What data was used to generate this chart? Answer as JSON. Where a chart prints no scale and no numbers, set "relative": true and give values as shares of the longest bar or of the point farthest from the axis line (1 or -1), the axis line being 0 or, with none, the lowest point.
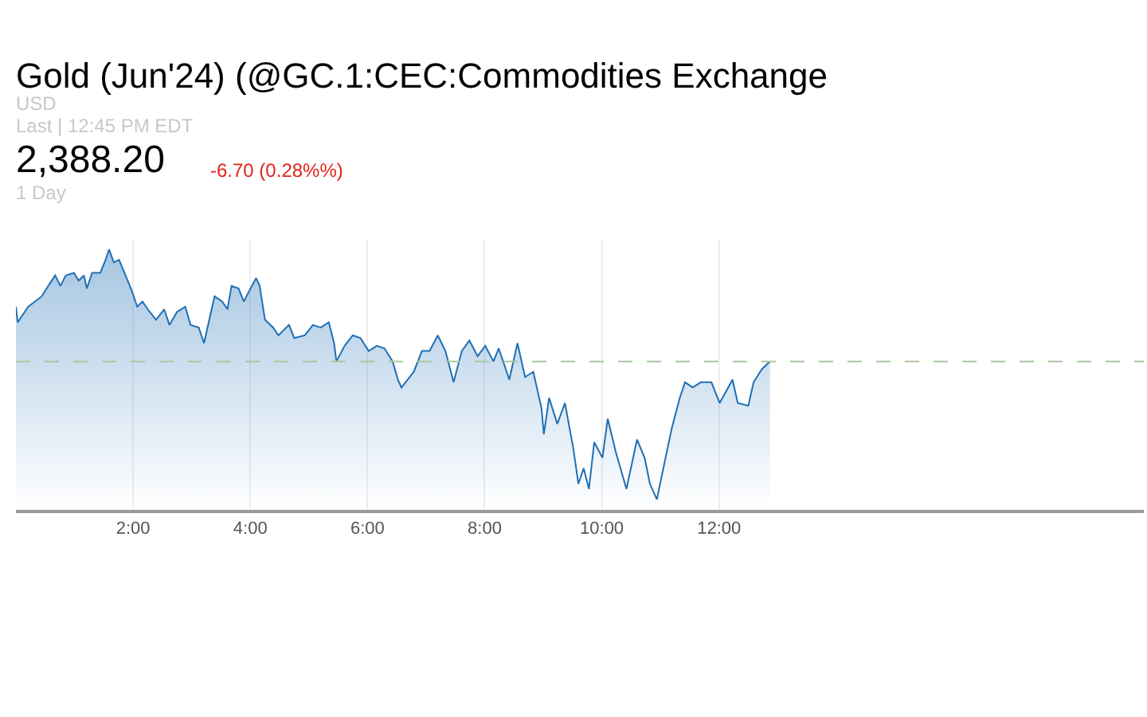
{
  "chart_data": {
    "type": "area",
    "title": "Gold (Jun'24) (@GC.1:CEC:Commodities Exchange",
    "annotations": [
      "USD",
      "Last | 12:45 PM EDT",
      "2,388.20",
      "-6.70 (0.28%%)",
      "1 Day"
    ],
    "relative": true,
    "x": [
      0.0,
      0.03,
      0.12,
      0.21,
      0.44,
      0.58,
      0.67,
      0.76,
      0.85,
      0.99,
      1.07,
      1.16,
      1.21,
      1.3,
      1.44,
      1.53,
      1.59,
      1.67,
      1.76,
      1.89,
      1.98,
      2.07,
      2.16,
      2.25,
      2.39,
      2.53,
      2.62,
      2.75,
      2.89,
      2.98,
      3.12,
      3.21,
      3.34,
      3.39,
      3.52,
      3.61,
      3.68,
      3.8,
      3.89,
      3.98,
      4.1,
      4.16,
      4.25,
      4.39,
      4.48,
      4.66,
      4.75,
      4.93,
      5.07,
      5.2,
      5.34,
      5.43,
      5.47,
      5.61,
      5.75,
      5.88,
      6.02,
      6.16,
      6.29,
      6.43,
      6.52,
      6.58,
      6.65,
      6.79,
      6.93,
      7.06,
      7.2,
      7.33,
      7.47,
      7.61,
      7.74,
      7.88,
      8.01,
      8.15,
      8.24,
      8.42,
      8.56,
      8.69,
      8.83,
      8.97,
      9.01,
      9.1,
      9.24,
      9.37,
      9.51,
      9.6,
      9.69,
      9.78,
      9.87,
      10.01,
      10.1,
      10.24,
      10.42,
      10.6,
      10.73,
      10.82,
      10.94,
      11.05,
      11.19,
      11.33,
      11.42,
      11.55,
      11.69,
      11.87,
      12.01,
      12.23,
      12.32,
      12.5,
      12.59,
      12.73,
      12.87
    ],
    "series": [
      {
        "color": "#1f6fb5",
        "values": [
          0.78,
          0.72,
          0.75,
          0.78,
          0.82,
          0.87,
          0.9,
          0.86,
          0.9,
          0.91,
          0.88,
          0.9,
          0.85,
          0.91,
          0.91,
          0.96,
          1.0,
          0.95,
          0.96,
          0.89,
          0.84,
          0.78,
          0.8,
          0.77,
          0.73,
          0.77,
          0.71,
          0.76,
          0.78,
          0.71,
          0.7,
          0.64,
          0.77,
          0.82,
          0.8,
          0.77,
          0.86,
          0.85,
          0.8,
          0.84,
          0.89,
          0.86,
          0.73,
          0.7,
          0.67,
          0.71,
          0.66,
          0.67,
          0.71,
          0.7,
          0.72,
          0.64,
          0.57,
          0.63,
          0.67,
          0.66,
          0.61,
          0.63,
          0.62,
          0.57,
          0.5,
          0.47,
          0.49,
          0.53,
          0.61,
          0.61,
          0.67,
          0.61,
          0.49,
          0.61,
          0.65,
          0.59,
          0.63,
          0.57,
          0.62,
          0.5,
          0.64,
          0.51,
          0.53,
          0.39,
          0.29,
          0.43,
          0.33,
          0.41,
          0.24,
          0.1,
          0.16,
          0.08,
          0.26,
          0.2,
          0.35,
          0.22,
          0.08,
          0.27,
          0.2,
          0.1,
          0.04,
          0.16,
          0.31,
          0.43,
          0.49,
          0.47,
          0.49,
          0.49,
          0.41,
          0.5,
          0.41,
          0.4,
          0.49,
          0.54,
          0.57
        ]
      }
    ],
    "xlim": [
      0,
      19.25
    ],
    "xticks": [
      {
        "value": 2,
        "label": "2:00"
      },
      {
        "value": 4,
        "label": "4:00"
      },
      {
        "value": 6,
        "label": "6:00"
      },
      {
        "value": 8,
        "label": "8:00"
      },
      {
        "value": 10,
        "label": "10:00"
      },
      {
        "value": 12,
        "label": "12:00"
      }
    ],
    "ref_lines": [
      {
        "axis": "y",
        "value": 0.57,
        "color": "#a8c8a0",
        "line_style": "dashed"
      }
    ],
    "grid": "x"
  }
}
